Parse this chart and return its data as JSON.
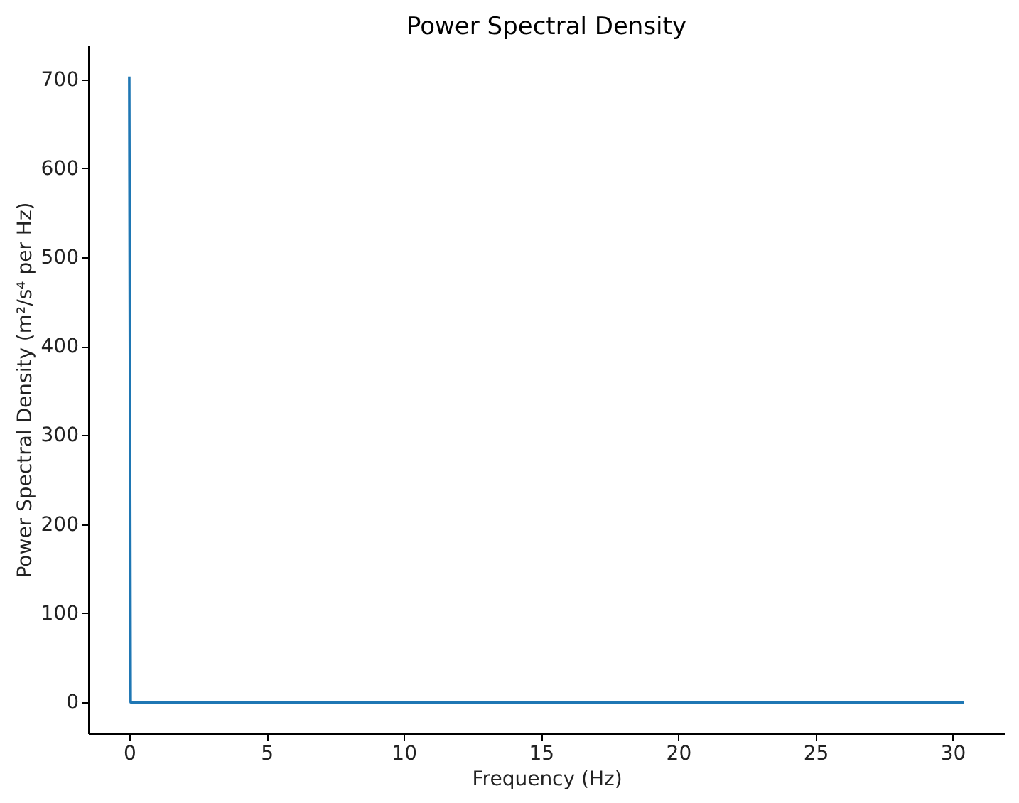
{
  "chart_data": {
    "type": "line",
    "title": "Power Spectral Density",
    "xlabel": "Frequency (Hz)",
    "ylabel": "Power Spectral Density (m²/s⁴ per Hz)",
    "series": [
      {
        "color": "#1f77b4",
        "x": [
          0,
          0.05,
          30.4
        ],
        "values": [
          703,
          0,
          0
        ]
      }
    ],
    "xlim": [
      -1.5,
      31.9
    ],
    "ylim": [
      -35,
      738
    ],
    "xticks": [
      0,
      5,
      10,
      15,
      20,
      25,
      30
    ],
    "yticks": [
      0,
      100,
      200,
      300,
      400,
      500,
      600,
      700
    ],
    "grid": false,
    "marker": "none",
    "line_style": "solid"
  }
}
